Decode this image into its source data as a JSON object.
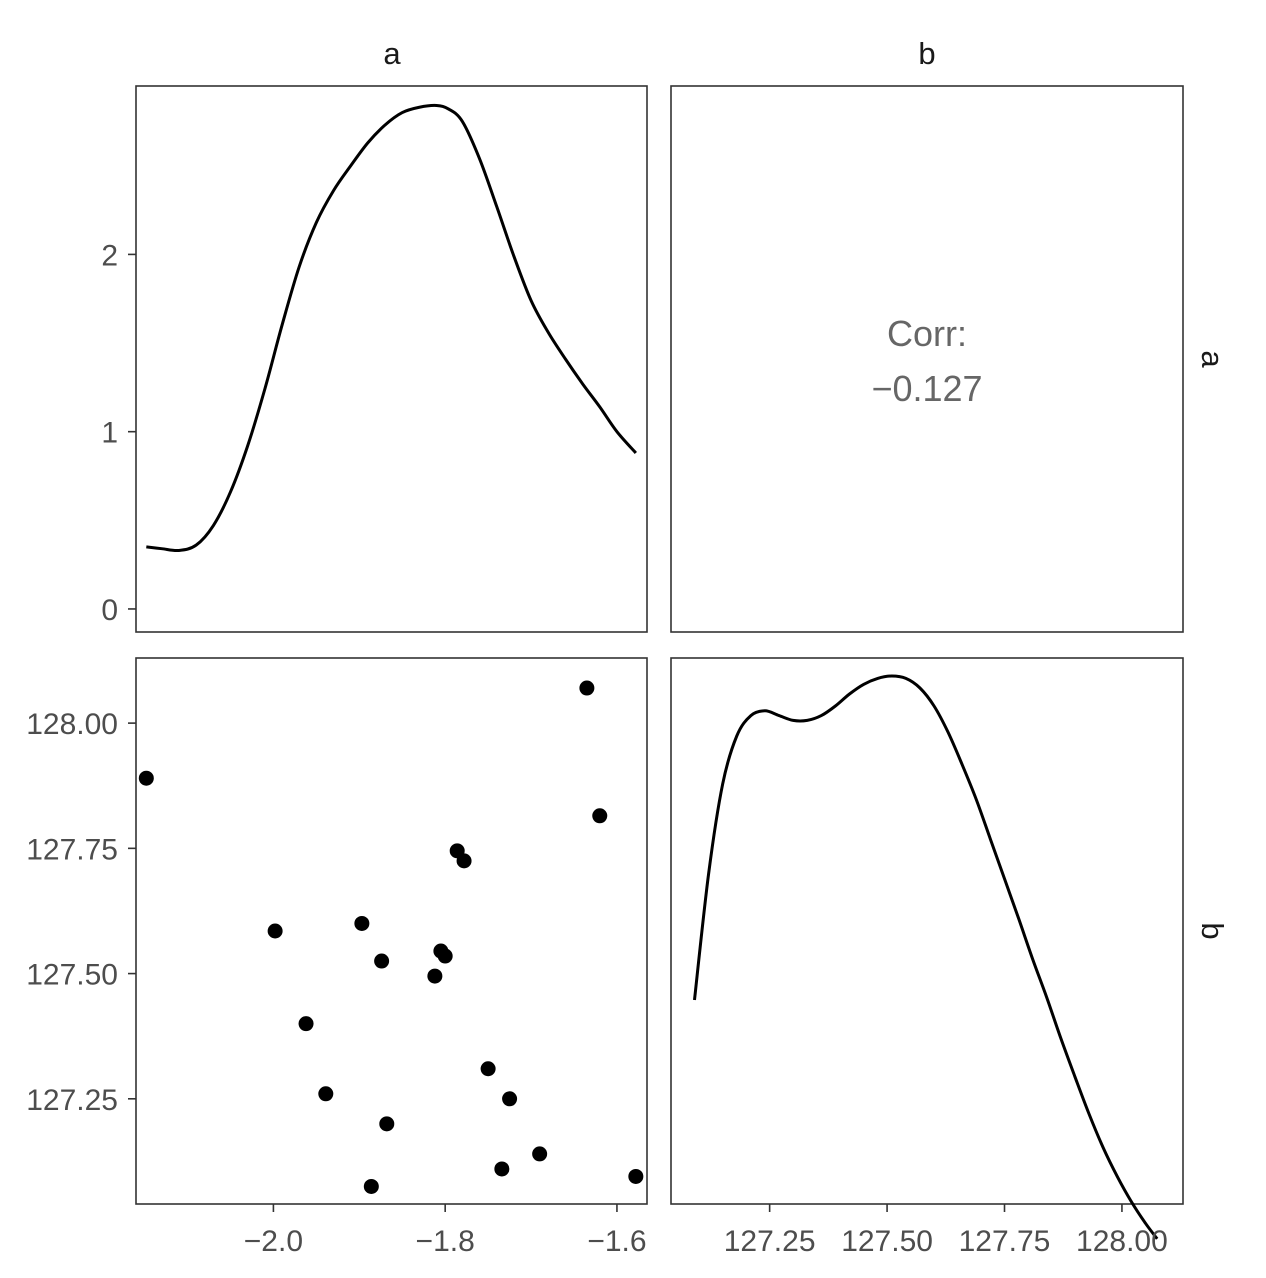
{
  "chart_data": {
    "type": "scatter-matrix",
    "variables": [
      "a",
      "b"
    ],
    "strips": {
      "top": [
        "a",
        "b"
      ],
      "right": [
        "a",
        "b"
      ]
    },
    "x_ticks": {
      "a": {
        "values": [
          -2.0,
          -1.8,
          -1.6
        ],
        "labels": [
          "−2.0",
          "−1.8",
          "−1.6"
        ]
      },
      "b": {
        "values": [
          127.25,
          127.5,
          127.75,
          128.0
        ],
        "labels": [
          "127.25",
          "127.50",
          "127.75",
          "128.00"
        ]
      }
    },
    "y_ticks": {
      "a": {
        "values": [
          0,
          1,
          2
        ],
        "labels": [
          "0",
          "1",
          "2"
        ]
      },
      "b": {
        "values": [
          127.25,
          127.5,
          127.75,
          128.0
        ],
        "labels": [
          "127.25",
          "127.50",
          "127.75",
          "128.00"
        ]
      }
    },
    "ranges": {
      "a": [
        -2.16,
        -1.565
      ],
      "b": [
        127.04,
        128.13
      ],
      "density_a": [
        -0.13,
        2.95
      ],
      "density_b": [
        -1.0,
        3.55
      ]
    },
    "correlation": {
      "label": "Corr:",
      "value": "−0.127"
    },
    "density_a": {
      "x": [
        -2.148,
        -2.13,
        -2.11,
        -2.09,
        -2.07,
        -2.05,
        -2.03,
        -2.01,
        -1.99,
        -1.97,
        -1.95,
        -1.93,
        -1.91,
        -1.89,
        -1.87,
        -1.85,
        -1.83,
        -1.81,
        -1.796,
        -1.78,
        -1.76,
        -1.74,
        -1.72,
        -1.7,
        -1.68,
        -1.66,
        -1.64,
        -1.62,
        -1.6,
        -1.578
      ],
      "y": [
        0.35,
        0.34,
        0.33,
        0.36,
        0.47,
        0.66,
        0.92,
        1.24,
        1.6,
        1.93,
        2.18,
        2.36,
        2.5,
        2.63,
        2.73,
        2.8,
        2.83,
        2.84,
        2.82,
        2.75,
        2.54,
        2.27,
        1.99,
        1.74,
        1.56,
        1.41,
        1.27,
        1.14,
        1.0,
        0.88
      ]
    },
    "density_b": {
      "x": [
        127.09,
        127.12,
        127.15,
        127.18,
        127.21,
        127.24,
        127.27,
        127.3,
        127.33,
        127.36,
        127.39,
        127.42,
        127.45,
        127.48,
        127.51,
        127.54,
        127.57,
        127.6,
        127.63,
        127.66,
        127.69,
        127.72,
        127.75,
        127.78,
        127.81,
        127.84,
        127.87,
        127.9,
        127.93,
        127.96,
        127.99,
        128.02,
        128.05,
        128.075
      ],
      "y": [
        0.7,
        1.75,
        2.5,
        2.9,
        3.07,
        3.11,
        3.07,
        3.03,
        3.03,
        3.07,
        3.15,
        3.25,
        3.33,
        3.38,
        3.4,
        3.38,
        3.3,
        3.15,
        2.93,
        2.66,
        2.37,
        2.04,
        1.71,
        1.38,
        1.04,
        0.72,
        0.38,
        0.06,
        -0.25,
        -0.53,
        -0.77,
        -0.98,
        -1.16,
        -1.29
      ]
    },
    "points": [
      {
        "a": -2.148,
        "b": 127.89
      },
      {
        "a": -1.998,
        "b": 127.585
      },
      {
        "a": -1.962,
        "b": 127.4
      },
      {
        "a": -1.939,
        "b": 127.26
      },
      {
        "a": -1.897,
        "b": 127.6
      },
      {
        "a": -1.886,
        "b": 127.075
      },
      {
        "a": -1.874,
        "b": 127.525
      },
      {
        "a": -1.868,
        "b": 127.2
      },
      {
        "a": -1.812,
        "b": 127.495
      },
      {
        "a": -1.805,
        "b": 127.545
      },
      {
        "a": -1.8,
        "b": 127.535
      },
      {
        "a": -1.786,
        "b": 127.745
      },
      {
        "a": -1.778,
        "b": 127.725
      },
      {
        "a": -1.75,
        "b": 127.31
      },
      {
        "a": -1.734,
        "b": 127.11
      },
      {
        "a": -1.725,
        "b": 127.25
      },
      {
        "a": -1.69,
        "b": 127.14
      },
      {
        "a": -1.635,
        "b": 128.07
      },
      {
        "a": -1.62,
        "b": 127.815
      },
      {
        "a": -1.578,
        "b": 127.095
      }
    ]
  }
}
